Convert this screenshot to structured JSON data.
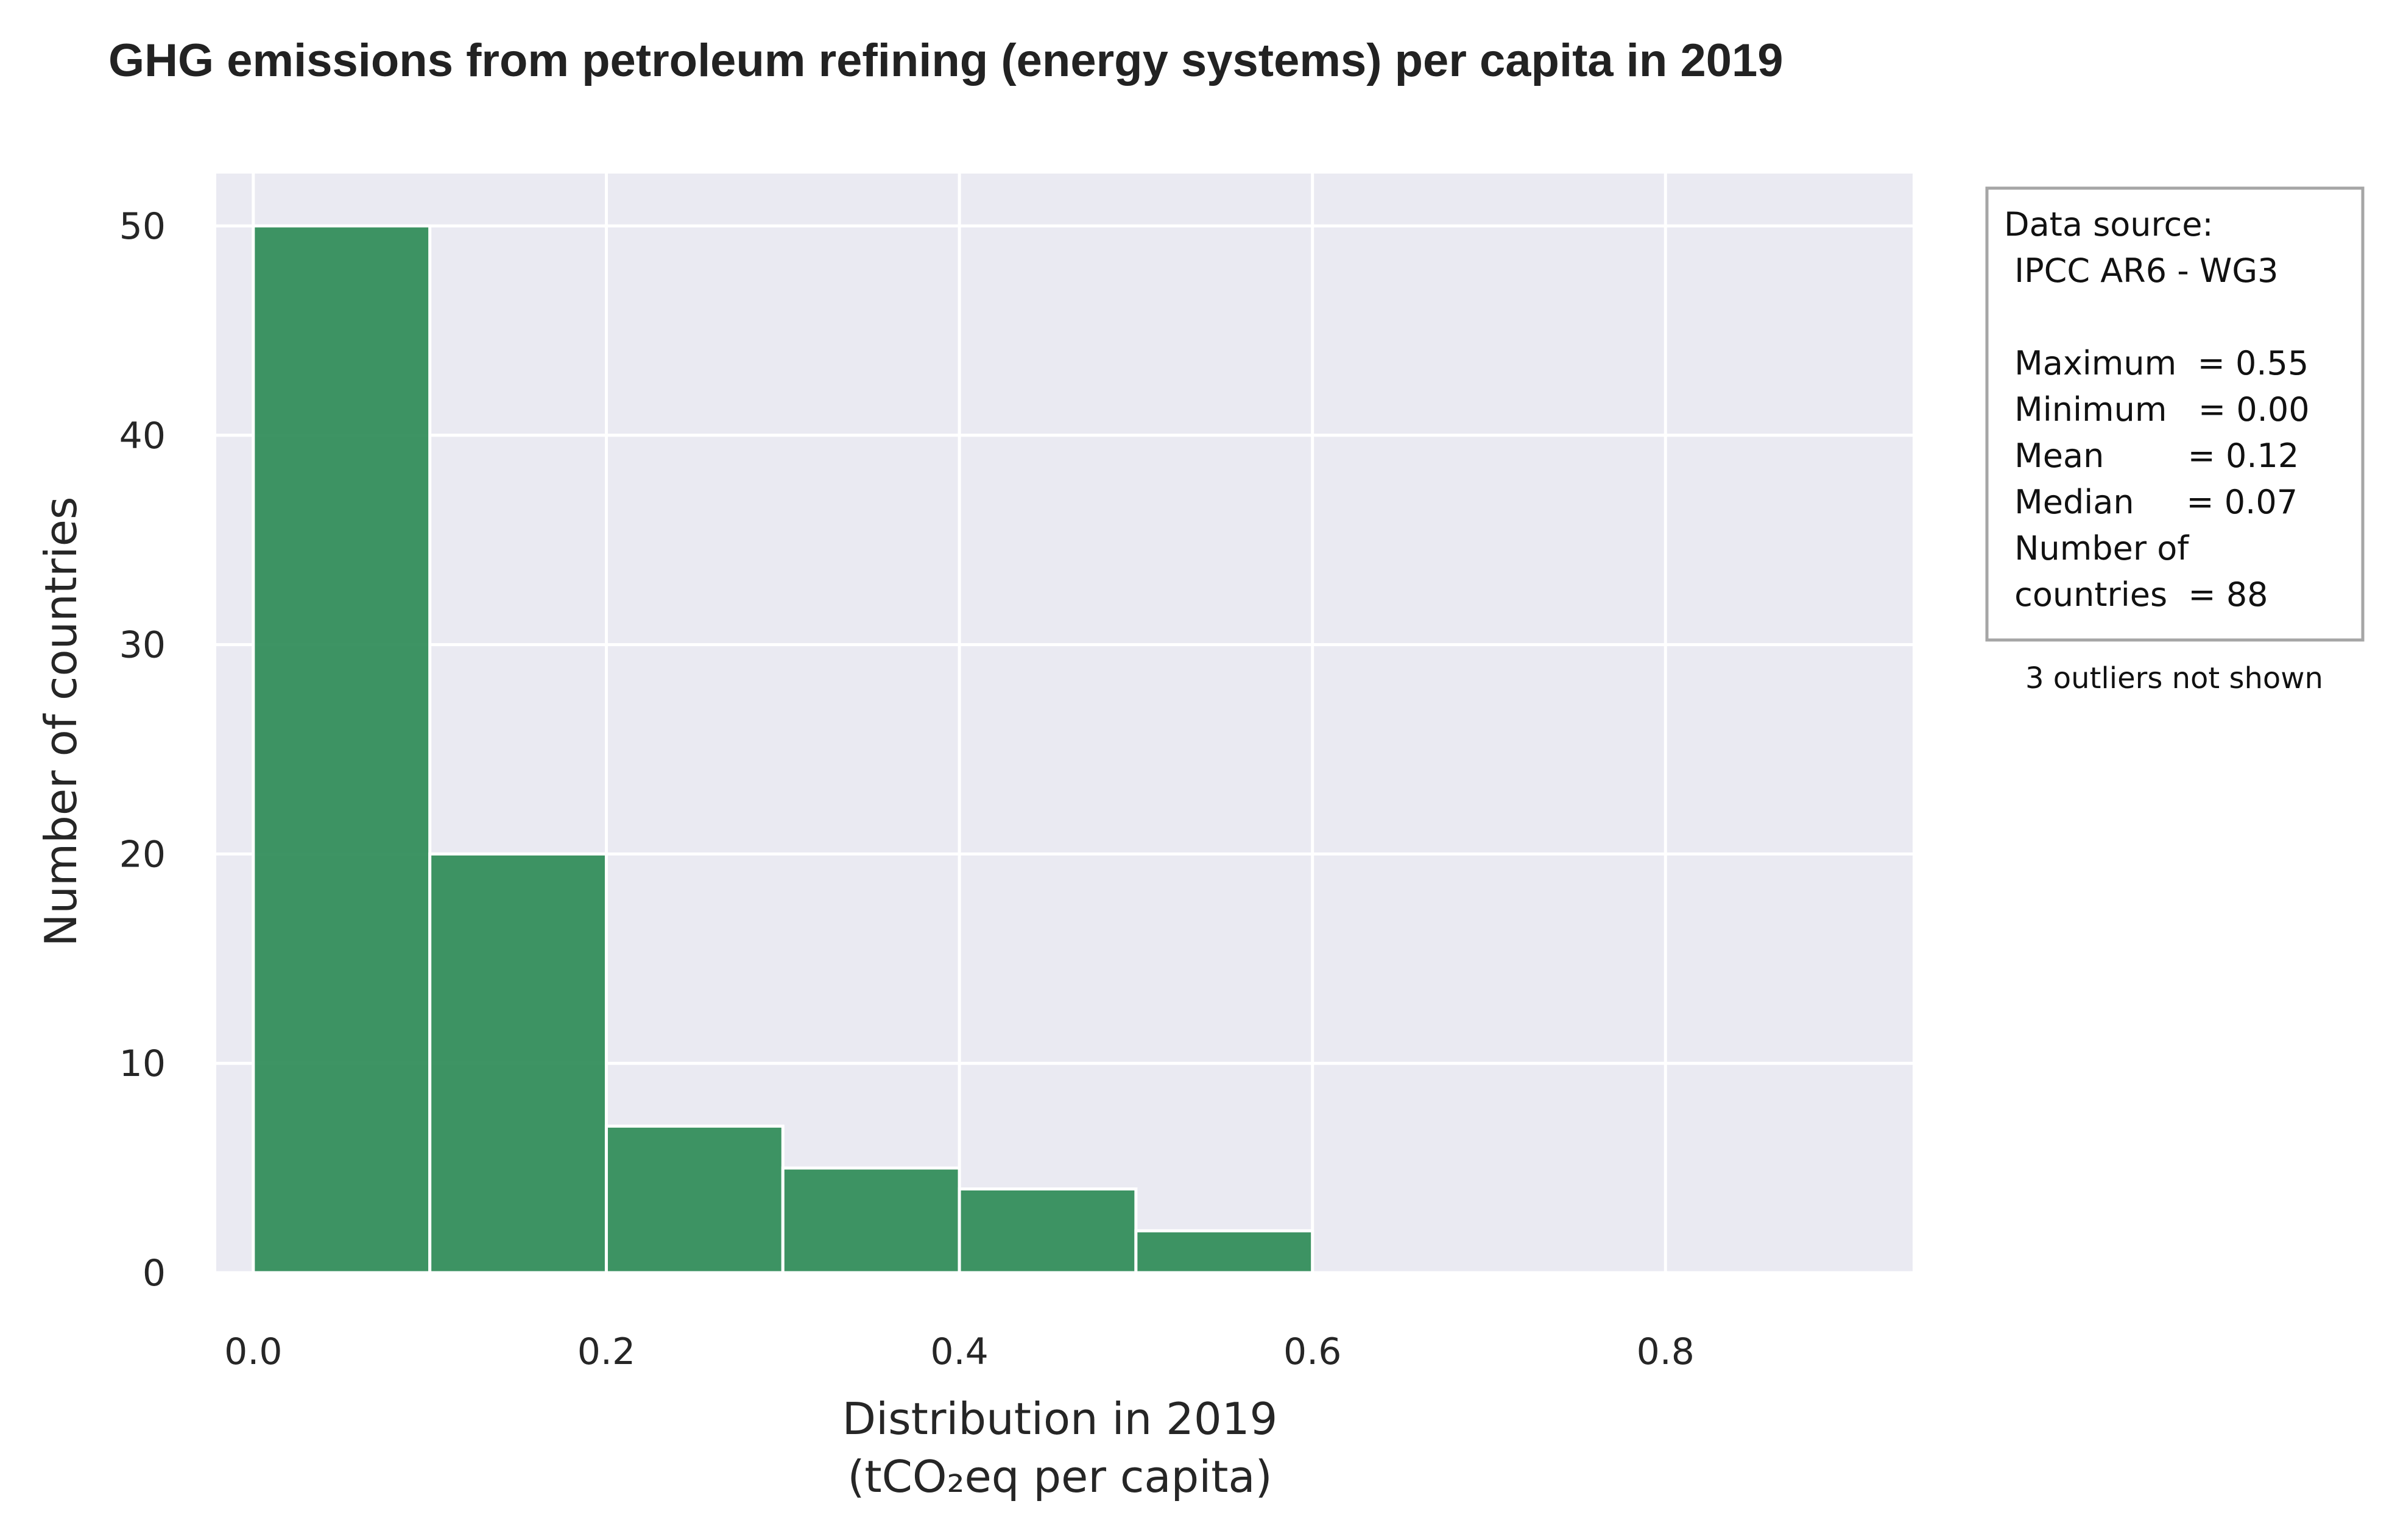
{
  "chart_data": {
    "type": "bar",
    "subtype": "histogram",
    "title": "GHG emissions from petroleum refining (energy systems) per capita in 2019",
    "xlabel_line1": "Distribution in 2019",
    "xlabel_line2": "(tCO₂eq per capita)",
    "ylabel": "Number of countries",
    "bins": [
      {
        "from": 0.0,
        "to": 0.1,
        "count": 50
      },
      {
        "from": 0.1,
        "to": 0.2,
        "count": 20
      },
      {
        "from": 0.2,
        "to": 0.3,
        "count": 7
      },
      {
        "from": 0.3,
        "to": 0.4,
        "count": 5
      },
      {
        "from": 0.4,
        "to": 0.5,
        "count": 4
      },
      {
        "from": 0.5,
        "to": 0.6,
        "count": 2
      }
    ],
    "xlim": [
      -0.021,
      0.94
    ],
    "ylim": [
      0,
      52.5
    ],
    "xticks": [
      0.0,
      0.2,
      0.4,
      0.6,
      0.8
    ],
    "xtick_labels": [
      "0.0",
      "0.2",
      "0.4",
      "0.6",
      "0.8"
    ],
    "yticks": [
      0,
      10,
      20,
      30,
      40,
      50
    ],
    "ytick_labels": [
      "0",
      "10",
      "20",
      "30",
      "40",
      "50"
    ],
    "x_gridlines": [
      0.0,
      0.2,
      0.4,
      0.6,
      0.8
    ],
    "grid": true,
    "legend_placement": "right-outside",
    "colors": {
      "bar": "#2e8b57",
      "bar_edge": "#ffffff",
      "plot_background": "#eaeaf2",
      "grid": "#ffffff",
      "box_border": "#a6a6a6"
    }
  },
  "info_box": {
    "lines": [
      "Data source:",
      " IPCC AR6 - WG3",
      "",
      " Maximum  = 0.55",
      " Minimum   = 0.00",
      " Mean        = 0.12",
      " Median     = 0.07",
      " Number of",
      " countries  = 88"
    ]
  },
  "outliers_note": "3 outliers not shown"
}
